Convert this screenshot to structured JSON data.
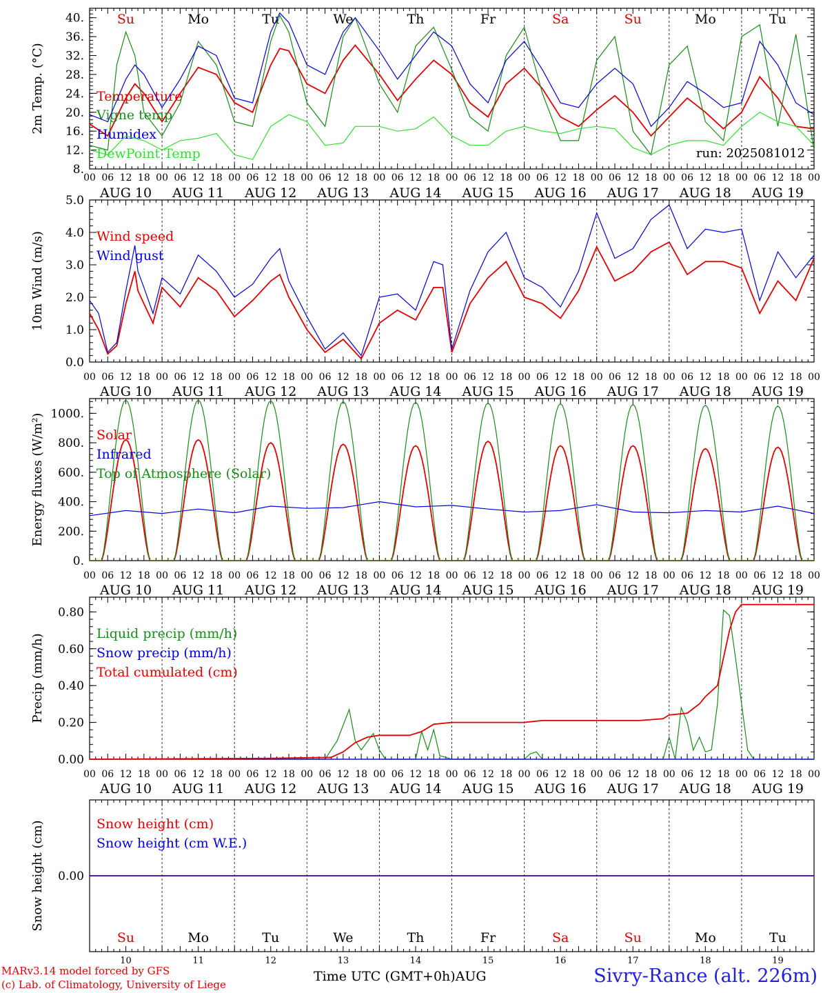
{
  "run": "run: 2025081012",
  "footer": {
    "credit_line1": "MARv3.14 model forced by GFS",
    "credit_line2": "(c) Lab. of Climatology, University of Liege",
    "xaxis_label": "Time UTC (GMT+0h)AUG",
    "station": "Sivry-Rance (alt. 226m)"
  },
  "time_axis": {
    "hour_ticks": [
      "00",
      "06",
      "12",
      "18"
    ],
    "dates": [
      "AUG 10",
      "AUG 11",
      "AUG 12",
      "AUG 13",
      "AUG 14",
      "AUG 15",
      "AUG 16",
      "AUG 17",
      "AUG 18",
      "AUG 19"
    ],
    "day_names": [
      "Su",
      "Mo",
      "Tu",
      "We",
      "Th",
      "Fr",
      "Sa",
      "Su",
      "Mo",
      "Tu"
    ],
    "day_numbers": [
      "10",
      "11",
      "12",
      "13",
      "14",
      "15",
      "16",
      "17",
      "18",
      "19"
    ],
    "weekend_color": "#e00000",
    "weekday_color": "#000000"
  },
  "colors": {
    "red": "#e00000",
    "green": "#1a8a1a",
    "blue": "#0000dd",
    "lightgreen": "#33dd33"
  },
  "chart_data": [
    {
      "type": "line",
      "ylabel": "2m Temp. (°C)",
      "ylim": [
        8,
        42
      ],
      "yticks": [
        "8.",
        "12.",
        "16.",
        "20.",
        "24.",
        "28.",
        "32.",
        "36.",
        "40."
      ],
      "x_unit": "hours since 2025-08-10 00 UTC",
      "series": [
        {
          "name": "Temperature",
          "color": "red",
          "x": [
            0,
            6,
            12,
            15,
            18,
            24,
            30,
            36,
            42,
            48,
            54,
            60,
            63,
            66,
            72,
            78,
            84,
            88,
            96,
            102,
            108,
            114,
            120,
            126,
            132,
            138,
            144,
            150,
            156,
            162,
            168,
            174,
            180,
            186,
            192,
            198,
            204,
            210,
            216,
            222,
            228,
            234,
            240
          ],
          "y": [
            17.5,
            15,
            23,
            26,
            24,
            18,
            24,
            29.5,
            28,
            22,
            20,
            30,
            33.5,
            33,
            26,
            24,
            31,
            34.2,
            28,
            22.5,
            27,
            31,
            28,
            22,
            19,
            26,
            29.3,
            25,
            19,
            17,
            20.5,
            23.5,
            20,
            15,
            19,
            23,
            20,
            16.5,
            20,
            27.5,
            23,
            17,
            16.5
          ]
        },
        {
          "name": "Vigne temp",
          "color": "green",
          "x": [
            0,
            6,
            9,
            12,
            15,
            18,
            24,
            30,
            36,
            42,
            48,
            54,
            60,
            63,
            66,
            72,
            78,
            84,
            88,
            96,
            102,
            108,
            114,
            120,
            126,
            132,
            138,
            144,
            150,
            156,
            162,
            168,
            174,
            180,
            186,
            192,
            198,
            204,
            210,
            216,
            222,
            228,
            234,
            240
          ],
          "y": [
            13,
            12,
            30,
            37,
            32,
            20,
            15,
            22,
            35,
            30,
            18,
            17,
            35,
            40.5,
            37,
            22,
            17,
            36,
            40,
            26,
            20,
            34,
            38,
            29,
            19,
            16,
            32,
            38,
            24,
            14,
            14,
            31,
            36,
            16,
            11,
            30,
            34,
            18,
            14,
            36,
            38.5,
            17,
            36.5,
            12
          ]
        },
        {
          "name": "Humidex",
          "color": "blue",
          "x": [
            0,
            6,
            12,
            15,
            18,
            24,
            30,
            36,
            42,
            48,
            54,
            60,
            63,
            66,
            72,
            78,
            84,
            88,
            96,
            102,
            108,
            114,
            120,
            126,
            132,
            138,
            144,
            150,
            156,
            162,
            168,
            174,
            180,
            186,
            192,
            198,
            204,
            210,
            216,
            222,
            228,
            234,
            240
          ],
          "y": [
            19.5,
            18,
            27,
            30,
            28,
            21,
            27,
            34,
            32,
            23,
            22,
            37,
            41,
            39,
            30,
            28,
            37,
            40,
            33,
            27,
            32,
            37,
            34,
            26,
            22,
            31,
            35,
            29,
            22,
            21,
            26,
            29.3,
            26,
            17,
            21,
            26.5,
            24,
            21,
            22,
            35,
            30,
            22,
            19.5
          ]
        },
        {
          "name": "DewPoint Temp",
          "color": "lightgreen",
          "x": [
            0,
            6,
            12,
            18,
            24,
            30,
            36,
            42,
            48,
            54,
            60,
            66,
            72,
            78,
            84,
            88,
            96,
            102,
            108,
            114,
            120,
            126,
            132,
            138,
            144,
            150,
            156,
            162,
            168,
            174,
            180,
            186,
            192,
            198,
            204,
            210,
            216,
            222,
            228,
            234,
            240
          ],
          "y": [
            12,
            11,
            15,
            14,
            12,
            14,
            14.5,
            15.5,
            11,
            10,
            17,
            19.5,
            18,
            13,
            13.5,
            17,
            17,
            16,
            16.5,
            19,
            15,
            13,
            13,
            16,
            17,
            16,
            15.5,
            16.5,
            17,
            16.5,
            12.5,
            11,
            13,
            14,
            14,
            13,
            17,
            20,
            18,
            17,
            13
          ]
        }
      ]
    },
    {
      "type": "line",
      "ylabel": "10m Wind (m/s)",
      "ylim": [
        0,
        5
      ],
      "yticks": [
        "0.0",
        "1.0",
        "2.0",
        "3.0",
        "4.0",
        "5.0"
      ],
      "series": [
        {
          "name": "Wind speed",
          "color": "red",
          "x": [
            0,
            3,
            6,
            9,
            12,
            15,
            16,
            18,
            21,
            24,
            30,
            36,
            42,
            48,
            54,
            60,
            63,
            66,
            72,
            78,
            84,
            90,
            96,
            102,
            108,
            114,
            117,
            120,
            126,
            132,
            138,
            144,
            150,
            156,
            162,
            168,
            174,
            180,
            186,
            192,
            198,
            204,
            210,
            216,
            222,
            228,
            234,
            240
          ],
          "y": [
            1.5,
            1,
            0.25,
            0.5,
            1.8,
            2.8,
            2.2,
            1.8,
            1.2,
            2.3,
            1.7,
            2.6,
            2.2,
            1.4,
            1.9,
            2.5,
            2.7,
            2,
            1,
            0.3,
            0.7,
            0.1,
            1.2,
            1.6,
            1.3,
            2.3,
            2.3,
            0.3,
            1.8,
            2.6,
            3.1,
            2.0,
            1.8,
            1.35,
            2.2,
            3.55,
            2.5,
            2.8,
            3.4,
            3.7,
            2.7,
            3.1,
            3.1,
            2.9,
            1.5,
            2.5,
            1.9,
            3.2
          ]
        },
        {
          "name": "Wind gust",
          "color": "blue",
          "x": [
            0,
            3,
            6,
            9,
            12,
            15,
            16,
            18,
            21,
            24,
            30,
            36,
            42,
            48,
            54,
            60,
            63,
            66,
            72,
            78,
            84,
            90,
            96,
            102,
            108,
            114,
            117,
            120,
            126,
            132,
            138,
            144,
            150,
            156,
            162,
            168,
            174,
            180,
            186,
            192,
            198,
            204,
            210,
            216,
            222,
            228,
            234,
            240
          ],
          "y": [
            1.9,
            1.5,
            0.3,
            0.6,
            2.2,
            3.6,
            2.8,
            2.3,
            1.5,
            2.6,
            2.1,
            3.3,
            2.8,
            2.0,
            2.4,
            3.2,
            3.5,
            2.5,
            1.4,
            0.4,
            0.9,
            0.2,
            2.0,
            2.1,
            1.6,
            3.1,
            3.0,
            0.4,
            2.2,
            3.4,
            4.0,
            2.6,
            2.3,
            1.7,
            2.8,
            4.6,
            3.2,
            3.5,
            4.4,
            4.85,
            3.5,
            4.1,
            4.0,
            4.1,
            1.9,
            3.4,
            2.6,
            3.3
          ]
        }
      ]
    },
    {
      "type": "line",
      "ylabel": "Energy fluxes (W/m²)",
      "ylim": [
        0,
        1100
      ],
      "yticks": [
        "0.",
        "200.",
        "400.",
        "600.",
        "800.",
        "1000."
      ],
      "series": [
        {
          "name": "Solar",
          "color": "red",
          "peaks": [
            820,
            820,
            800,
            790,
            780,
            810,
            780,
            780,
            760,
            770
          ],
          "sunrise_offset_h": 4,
          "sunset_offset_h": 20
        },
        {
          "name": "Infrared",
          "color": "blue",
          "x": [
            0,
            12,
            24,
            36,
            48,
            60,
            72,
            84,
            96,
            108,
            120,
            132,
            144,
            156,
            168,
            180,
            192,
            204,
            216,
            228,
            240
          ],
          "y": [
            305,
            340,
            320,
            350,
            325,
            370,
            355,
            360,
            400,
            365,
            375,
            350,
            330,
            340,
            380,
            330,
            325,
            340,
            330,
            370,
            320
          ]
        },
        {
          "name": "Top of Atmosphere (Solar)",
          "color": "green",
          "peaks": [
            1090,
            1090,
            1085,
            1080,
            1075,
            1070,
            1065,
            1060,
            1055,
            1050
          ],
          "sunrise_offset_h": 4,
          "sunset_offset_h": 20
        }
      ]
    },
    {
      "type": "line",
      "ylabel": "Precip (mm/h)",
      "ylim": [
        0,
        0.88
      ],
      "yticks": [
        "0.00",
        "0.20",
        "0.40",
        "0.60",
        "0.80"
      ],
      "series": [
        {
          "name": "Liquid precip (mm/h)",
          "color": "green",
          "x": [
            0,
            48,
            60,
            72,
            78,
            82,
            86,
            88,
            90,
            94,
            96,
            98,
            100,
            108,
            110,
            112,
            114,
            116,
            120,
            144,
            146,
            148,
            150,
            156,
            190,
            192,
            194,
            196,
            198,
            200,
            202,
            204,
            206,
            208,
            210,
            212,
            214,
            218,
            220,
            240
          ],
          "y": [
            0,
            0,
            0,
            0,
            0,
            0.1,
            0.27,
            0.1,
            0.05,
            0.14,
            0.05,
            0,
            0,
            0,
            0.15,
            0.05,
            0.16,
            0.02,
            0,
            0,
            0.03,
            0.04,
            0,
            0,
            0,
            0.12,
            0,
            0.28,
            0.2,
            0.05,
            0.12,
            0.04,
            0.05,
            0.3,
            0.81,
            0.78,
            0.55,
            0.05,
            0,
            0
          ]
        },
        {
          "name": "Snow precip (mm/h)",
          "color": "blue",
          "x": [
            0,
            240
          ],
          "y": [
            0,
            0
          ]
        },
        {
          "name": "Total cumulated (cm)",
          "color": "red",
          "x": [
            0,
            60,
            80,
            84,
            88,
            92,
            96,
            100,
            106,
            110,
            114,
            120,
            132,
            144,
            150,
            170,
            182,
            190,
            192,
            198,
            202,
            204,
            208,
            210,
            212,
            214,
            216,
            240
          ],
          "y": [
            0,
            0.005,
            0.01,
            0.04,
            0.09,
            0.12,
            0.13,
            0.13,
            0.13,
            0.15,
            0.19,
            0.2,
            0.2,
            0.2,
            0.21,
            0.21,
            0.21,
            0.22,
            0.24,
            0.25,
            0.3,
            0.34,
            0.4,
            0.55,
            0.7,
            0.8,
            0.84,
            0.84
          ]
        }
      ]
    },
    {
      "type": "line",
      "ylabel": "Snow height (cm)",
      "ylim": [
        -1,
        1
      ],
      "yticks": [
        "0.00"
      ],
      "series": [
        {
          "name": "Snow height (cm)",
          "color": "red",
          "x": [
            0,
            240
          ],
          "y": [
            0,
            0
          ]
        },
        {
          "name": "Snow height (cm W.E.)",
          "color": "blue",
          "x": [
            0,
            240
          ],
          "y": [
            0,
            0
          ]
        }
      ]
    }
  ]
}
